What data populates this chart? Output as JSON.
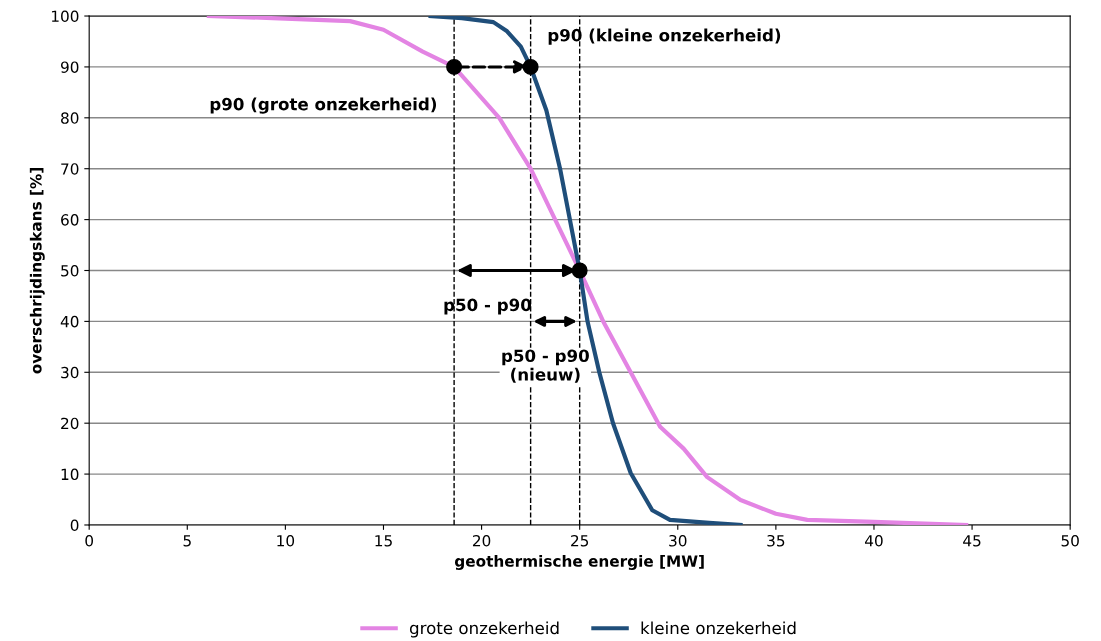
{
  "chart_data": {
    "type": "line",
    "xlabel": "geothermische energie [MW]",
    "ylabel": "overschrijdingskans [%]",
    "xlim": [
      0,
      50
    ],
    "xticks": [
      0,
      5,
      10,
      15,
      20,
      25,
      30,
      35,
      40,
      45,
      50
    ],
    "ylim": [
      0,
      100
    ],
    "yticks": [
      0,
      10,
      20,
      30,
      40,
      50,
      60,
      70,
      80,
      90,
      100
    ],
    "grid": "y",
    "legend": "bottom",
    "marker": "none",
    "line_style": "solid",
    "series": [
      {
        "name": "grote onzekerheid",
        "color": "#e384e3",
        "x": [
          6.1,
          10,
          13.3,
          15,
          17,
          18.6,
          20.9,
          22.5,
          23.75,
          25,
          26.2,
          27.6,
          29.1,
          30.3,
          31.5,
          33.2,
          35,
          36.6,
          40,
          44.7
        ],
        "values": [
          100,
          99.5,
          99,
          97.3,
          93,
          90,
          80,
          70,
          60,
          50,
          40,
          30,
          19.3,
          15,
          9.4,
          4.9,
          2.2,
          1.0,
          0.6,
          0
        ]
      },
      {
        "name": "kleine onzekerheid",
        "color": "#1f4e7a",
        "x": [
          17.4,
          19,
          20.6,
          21.3,
          22,
          22.5,
          23.3,
          24,
          24.4,
          25,
          25.4,
          26,
          26.7,
          27.6,
          28.7,
          29.6,
          31.6,
          33.2
        ],
        "values": [
          100,
          99.6,
          98.8,
          97,
          94,
          90,
          81.5,
          70,
          62,
          50,
          40,
          30,
          20,
          10.2,
          2.9,
          1,
          0.4,
          0
        ]
      },
      {
        "type": "scatter",
        "color": "#000000",
        "marker": "circle",
        "x": [
          18.6,
          22.5,
          25
        ],
        "values": [
          90,
          90,
          50
        ]
      }
    ],
    "ref_lines": [
      {
        "axis": "x",
        "value": 18.6,
        "color": "#000000",
        "line_style": "dashed"
      },
      {
        "axis": "x",
        "value": 22.5,
        "color": "#000000",
        "line_style": "dashed"
      },
      {
        "axis": "x",
        "value": 25,
        "color": "#000000",
        "line_style": "dashed"
      }
    ],
    "annotations": [
      {
        "text": "p90 (grote onzekerheid)",
        "x": 18.6,
        "y": 90
      },
      {
        "text": "p90 (kleine onzekerheid)",
        "x": 22.5,
        "y": 90
      },
      "p50 - p90",
      "p50 - p90\n(nieuw)"
    ]
  }
}
